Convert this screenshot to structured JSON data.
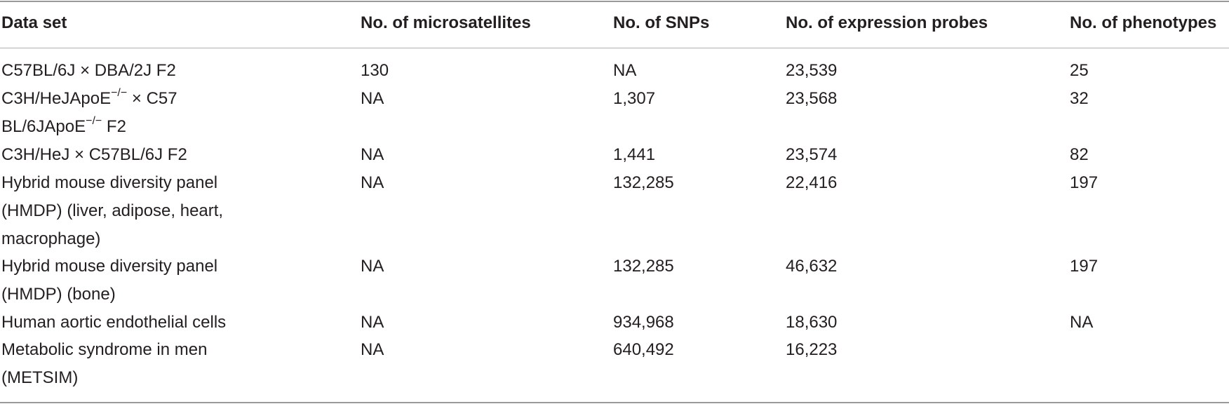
{
  "table": {
    "headers": [
      "Data set",
      "No. of microsatellites",
      "No. of SNPs",
      "No. of expression probes",
      "No. of phenotypes"
    ],
    "rows": [
      {
        "dataset_lines": [
          "C57BL/6J × DBA/2J F2"
        ],
        "microsatellites": "130",
        "snps": "NA",
        "expression_probes": "23,539",
        "phenotypes": "25"
      },
      {
        "dataset_lines": [
          "C3H/HeJApoE",
          "−/−",
          " × C57",
          "BL/6JApoE",
          "−/−",
          " F2"
        ],
        "microsatellites": "NA",
        "snps": "1,307",
        "expression_probes": "23,568",
        "phenotypes": "32"
      },
      {
        "dataset_lines": [
          "C3H/HeJ × C57BL/6J F2"
        ],
        "microsatellites": "NA",
        "snps": "1,441",
        "expression_probes": "23,574",
        "phenotypes": "82"
      },
      {
        "dataset_lines": [
          "Hybrid mouse diversity panel",
          "(HMDP) (liver, adipose, heart,",
          "macrophage)"
        ],
        "microsatellites": "NA",
        "snps": "132,285",
        "expression_probes": "22,416",
        "phenotypes": "197"
      },
      {
        "dataset_lines": [
          "Hybrid mouse diversity panel",
          "(HMDP) (bone)"
        ],
        "microsatellites": "NA",
        "snps": "132,285",
        "expression_probes": "46,632",
        "phenotypes": "197"
      },
      {
        "dataset_lines": [
          "Human aortic endothelial cells"
        ],
        "microsatellites": "NA",
        "snps": "934,968",
        "expression_probes": "18,630",
        "phenotypes": "NA"
      },
      {
        "dataset_lines": [
          "Metabolic syndrome in men",
          "(METSIM)"
        ],
        "microsatellites": "NA",
        "snps": "640,492",
        "expression_probes": "16,223",
        "phenotypes": ""
      }
    ]
  }
}
